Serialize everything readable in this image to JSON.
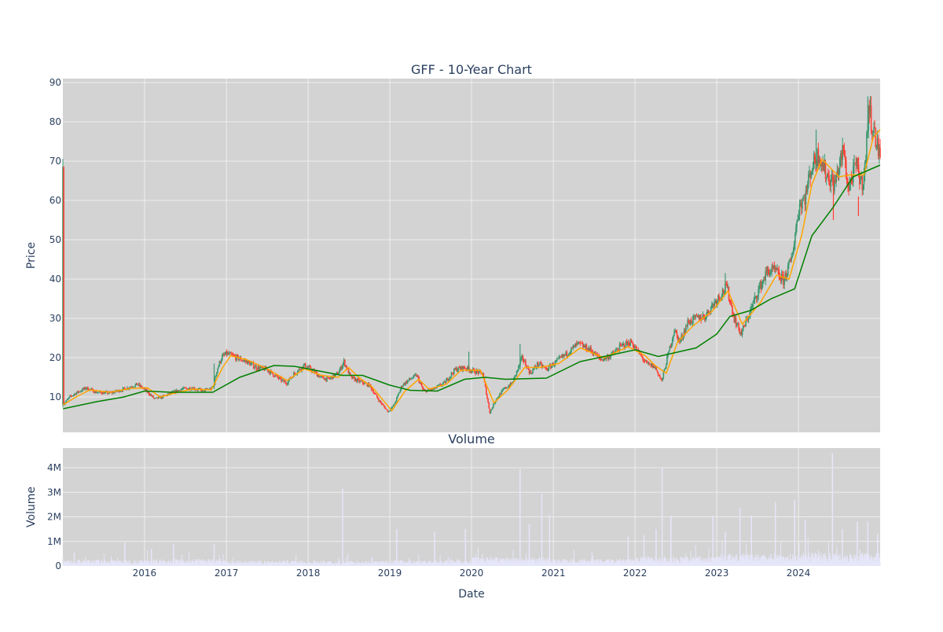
{
  "chart_data": [
    {
      "type": "candlestick",
      "title": "GFF - 10-Year Chart",
      "ylabel": "Price",
      "xlabel": "",
      "xlim": [
        "2015-01-01",
        "2024-12-31"
      ],
      "ylim": [
        1,
        91
      ],
      "yticks": [
        10,
        20,
        30,
        40,
        50,
        60,
        70,
        80,
        90
      ],
      "grid": true,
      "colors": {
        "increasing": "#3d9970",
        "decreasing": "#ff4136",
        "ma_fast": "#ffa500",
        "ma_slow": "#008000",
        "plot_bg": "#d3d3d3",
        "grid": "#eeeeee"
      },
      "price_path": [
        [
          "2015-01-02",
          8
        ],
        [
          "2015-02-01",
          10
        ],
        [
          "2015-03-01",
          11
        ],
        [
          "2015-04-15",
          12.3
        ],
        [
          "2015-06-01",
          11.2
        ],
        [
          "2015-08-01",
          11
        ],
        [
          "2015-10-01",
          12
        ],
        [
          "2015-12-01",
          13.2
        ],
        [
          "2016-01-10",
          11.5
        ],
        [
          "2016-02-15",
          9.5
        ],
        [
          "2016-03-20",
          10
        ],
        [
          "2016-05-01",
          11
        ],
        [
          "2016-06-15",
          12
        ],
        [
          "2016-08-01",
          12.3
        ],
        [
          "2016-09-15",
          11.6
        ],
        [
          "2016-10-25",
          12
        ],
        [
          "2016-11-05",
          13
        ],
        [
          "2016-11-20",
          17
        ],
        [
          "2016-12-10",
          20
        ],
        [
          "2017-01-01",
          21
        ],
        [
          "2017-02-15",
          20
        ],
        [
          "2017-04-01",
          19
        ],
        [
          "2017-05-15",
          17.5
        ],
        [
          "2017-07-01",
          17
        ],
        [
          "2017-08-15",
          15
        ],
        [
          "2017-09-25",
          13.5
        ],
        [
          "2017-11-01",
          16
        ],
        [
          "2017-12-15",
          18
        ],
        [
          "2018-01-15",
          17
        ],
        [
          "2018-02-25",
          15
        ],
        [
          "2018-04-01",
          14.5
        ],
        [
          "2018-05-15",
          16
        ],
        [
          "2018-06-10",
          19
        ],
        [
          "2018-07-10",
          15
        ],
        [
          "2018-08-15",
          14
        ],
        [
          "2018-10-01",
          13
        ],
        [
          "2018-11-15",
          9
        ],
        [
          "2018-12-25",
          6.2
        ],
        [
          "2019-01-20",
          8
        ],
        [
          "2019-02-25",
          13
        ],
        [
          "2019-04-01",
          14.5
        ],
        [
          "2019-05-01",
          15.5
        ],
        [
          "2019-06-01",
          11.5
        ],
        [
          "2019-07-15",
          12
        ],
        [
          "2019-09-01",
          13.5
        ],
        [
          "2019-10-20",
          17
        ],
        [
          "2019-12-01",
          17.5
        ],
        [
          "2020-01-15",
          16.5
        ],
        [
          "2020-02-20",
          16
        ],
        [
          "2020-03-23",
          6
        ],
        [
          "2020-04-20",
          9.5
        ],
        [
          "2020-05-25",
          12
        ],
        [
          "2020-07-01",
          13.5
        ],
        [
          "2020-08-15",
          20
        ],
        [
          "2020-09-20",
          16
        ],
        [
          "2020-10-25",
          18.5
        ],
        [
          "2020-12-01",
          17
        ],
        [
          "2021-01-15",
          19
        ],
        [
          "2021-03-01",
          21
        ],
        [
          "2021-04-20",
          23.5
        ],
        [
          "2021-06-15",
          22
        ],
        [
          "2021-08-01",
          19.5
        ],
        [
          "2021-09-15",
          20.5
        ],
        [
          "2021-11-01",
          23
        ],
        [
          "2021-12-15",
          24
        ],
        [
          "2022-01-20",
          21
        ],
        [
          "2022-02-20",
          18.5
        ],
        [
          "2022-04-01",
          17.5
        ],
        [
          "2022-04-30",
          14
        ],
        [
          "2022-05-25",
          20
        ],
        [
          "2022-06-25",
          27
        ],
        [
          "2022-07-20",
          24
        ],
        [
          "2022-08-25",
          29
        ],
        [
          "2022-10-01",
          30
        ],
        [
          "2022-11-10",
          30.5
        ],
        [
          "2022-12-20",
          34
        ],
        [
          "2023-02-15",
          38
        ],
        [
          "2023-03-20",
          30
        ],
        [
          "2023-04-20",
          26
        ],
        [
          "2023-05-25",
          31
        ],
        [
          "2023-07-05",
          37
        ],
        [
          "2023-08-15",
          42
        ],
        [
          "2023-09-20",
          42
        ],
        [
          "2023-10-25",
          39.5
        ],
        [
          "2023-12-01",
          45
        ],
        [
          "2024-01-05",
          59
        ],
        [
          "2024-02-01",
          61
        ],
        [
          "2024-02-25",
          68
        ],
        [
          "2024-04-01",
          72
        ],
        [
          "2024-05-01",
          67
        ],
        [
          "2024-06-10",
          64
        ],
        [
          "2024-07-20",
          73
        ],
        [
          "2024-08-10",
          63
        ],
        [
          "2024-09-15",
          69
        ],
        [
          "2024-10-10",
          64
        ],
        [
          "2024-10-28",
          70
        ],
        [
          "2024-11-08",
          84
        ],
        [
          "2024-12-01",
          78
        ],
        [
          "2024-12-31",
          71
        ]
      ],
      "ma_fast": [
        [
          "2015-01-02",
          8
        ],
        [
          "2015-03-01",
          10
        ],
        [
          "2015-05-01",
          11.8
        ],
        [
          "2015-08-01",
          11.2
        ],
        [
          "2015-11-01",
          12.2
        ],
        [
          "2016-01-15",
          12.3
        ],
        [
          "2016-03-10",
          10
        ],
        [
          "2016-05-15",
          11
        ],
        [
          "2016-08-01",
          12
        ],
        [
          "2016-10-25",
          11.8
        ],
        [
          "2016-12-15",
          17.5
        ],
        [
          "2017-01-20",
          20.5
        ],
        [
          "2017-04-01",
          19.5
        ],
        [
          "2017-07-01",
          17.2
        ],
        [
          "2017-09-30",
          14.2
        ],
        [
          "2017-12-15",
          17.2
        ],
        [
          "2018-03-01",
          15.5
        ],
        [
          "2018-05-15",
          15
        ],
        [
          "2018-07-01",
          17.5
        ],
        [
          "2018-08-15",
          15
        ],
        [
          "2018-10-15",
          12.5
        ],
        [
          "2019-01-10",
          6.5
        ],
        [
          "2019-03-10",
          11.5
        ],
        [
          "2019-05-10",
          14.5
        ],
        [
          "2019-06-25",
          12
        ],
        [
          "2019-09-10",
          13.2
        ],
        [
          "2019-11-15",
          16.8
        ],
        [
          "2020-02-10",
          16.8
        ],
        [
          "2020-04-10",
          8.5
        ],
        [
          "2020-06-15",
          12
        ],
        [
          "2020-08-25",
          17.5
        ],
        [
          "2020-11-01",
          17.5
        ],
        [
          "2021-01-25",
          18.5
        ],
        [
          "2021-05-01",
          22.5
        ],
        [
          "2021-08-15",
          20
        ],
        [
          "2021-12-01",
          22.8
        ],
        [
          "2022-02-15",
          20.5
        ],
        [
          "2022-04-01",
          18
        ],
        [
          "2022-05-20",
          16
        ],
        [
          "2022-07-10",
          24
        ],
        [
          "2022-09-15",
          28
        ],
        [
          "2022-12-15",
          32
        ],
        [
          "2023-02-20",
          37
        ],
        [
          "2023-04-25",
          28.5
        ],
        [
          "2023-07-15",
          34
        ],
        [
          "2023-09-25",
          41
        ],
        [
          "2023-11-20",
          40
        ],
        [
          "2024-01-15",
          51
        ],
        [
          "2024-03-01",
          64
        ],
        [
          "2024-04-15",
          70.5
        ],
        [
          "2024-07-01",
          66
        ],
        [
          "2024-08-20",
          66.5
        ],
        [
          "2024-10-20",
          66.5
        ],
        [
          "2024-11-30",
          76
        ],
        [
          "2024-12-31",
          78
        ]
      ],
      "ma_slow": [
        [
          "2015-01-02",
          7
        ],
        [
          "2015-06-01",
          8.8
        ],
        [
          "2015-10-01",
          10
        ],
        [
          "2016-01-01",
          11.5
        ],
        [
          "2016-05-01",
          11.2
        ],
        [
          "2016-11-01",
          11.2
        ],
        [
          "2017-03-01",
          15
        ],
        [
          "2017-08-01",
          18
        ],
        [
          "2017-11-01",
          17.8
        ],
        [
          "2018-03-01",
          16.5
        ],
        [
          "2018-06-01",
          15.5
        ],
        [
          "2018-09-01",
          15.5
        ],
        [
          "2019-01-01",
          13
        ],
        [
          "2019-04-01",
          11.7
        ],
        [
          "2019-08-01",
          11.5
        ],
        [
          "2019-12-01",
          14.5
        ],
        [
          "2020-03-01",
          15
        ],
        [
          "2020-06-01",
          14.5
        ],
        [
          "2020-12-01",
          14.8
        ],
        [
          "2021-05-01",
          19
        ],
        [
          "2021-09-01",
          20.5
        ],
        [
          "2022-01-01",
          22
        ],
        [
          "2022-04-15",
          20.3
        ],
        [
          "2022-10-01",
          22.5
        ],
        [
          "2023-01-01",
          26
        ],
        [
          "2023-03-01",
          30.5
        ],
        [
          "2023-06-01",
          32
        ],
        [
          "2023-09-01",
          35
        ],
        [
          "2023-12-15",
          37.5
        ],
        [
          "2024-03-01",
          51
        ],
        [
          "2024-06-01",
          58
        ],
        [
          "2024-09-01",
          66
        ],
        [
          "2024-12-31",
          69
        ]
      ],
      "spikes": [
        [
          "2016-11-07",
          12,
          18.5
        ],
        [
          "2019-12-20",
          16.5,
          21.5
        ],
        [
          "2020-08-05",
          17,
          23.5
        ],
        [
          "2023-02-08",
          36,
          41.5
        ],
        [
          "2024-03-20",
          68,
          78
        ],
        [
          "2024-06-05",
          66,
          55
        ],
        [
          "2024-11-06",
          78,
          86.5
        ],
        [
          "2024-09-25",
          61,
          56
        ]
      ]
    },
    {
      "type": "bar",
      "title": "Volume",
      "ylabel": "Volume",
      "xlabel": "Date",
      "ylim": [
        0,
        4800000
      ],
      "yticks": [
        0,
        1000000,
        2000000,
        3000000,
        4000000
      ],
      "ytick_labels": [
        "0",
        "1M",
        "2M",
        "3M",
        "4M"
      ],
      "xticks": [
        "2016",
        "2017",
        "2018",
        "2019",
        "2020",
        "2021",
        "2022",
        "2023",
        "2024"
      ],
      "bar_color": "#e6e6fa",
      "baseline_by_year": [
        [
          "2015",
          180000
        ],
        [
          "2016",
          200000
        ],
        [
          "2017",
          150000
        ],
        [
          "2018",
          150000
        ],
        [
          "2019",
          170000
        ],
        [
          "2020",
          250000
        ],
        [
          "2021",
          200000
        ],
        [
          "2022",
          280000
        ],
        [
          "2023",
          350000
        ],
        [
          "2024",
          380000
        ]
      ],
      "spikes": [
        [
          "2015-10-05",
          950000
        ],
        [
          "2016-02-01",
          700000
        ],
        [
          "2016-05-10",
          900000
        ],
        [
          "2016-11-07",
          900000
        ],
        [
          "2018-06-04",
          3150000
        ],
        [
          "2019-02-01",
          1500000
        ],
        [
          "2019-07-20",
          1400000
        ],
        [
          "2019-12-05",
          1500000
        ],
        [
          "2020-08-05",
          3950000
        ],
        [
          "2020-09-15",
          1700000
        ],
        [
          "2020-11-10",
          2950000
        ],
        [
          "2020-12-15",
          2100000
        ],
        [
          "2021-12-01",
          1200000
        ],
        [
          "2022-02-10",
          1250000
        ],
        [
          "2022-04-05",
          1500000
        ],
        [
          "2022-05-02",
          4000000
        ],
        [
          "2022-06-10",
          2050000
        ],
        [
          "2022-12-15",
          2050000
        ],
        [
          "2023-02-08",
          1400000
        ],
        [
          "2023-04-15",
          2350000
        ],
        [
          "2023-06-05",
          2050000
        ],
        [
          "2023-09-20",
          2600000
        ],
        [
          "2023-12-15",
          2700000
        ],
        [
          "2024-02-01",
          1900000
        ],
        [
          "2024-06-01",
          4600000
        ],
        [
          "2024-07-15",
          1500000
        ],
        [
          "2024-09-20",
          1800000
        ],
        [
          "2024-11-06",
          1800000
        ],
        [
          "2024-12-20",
          1300000
        ]
      ]
    }
  ]
}
